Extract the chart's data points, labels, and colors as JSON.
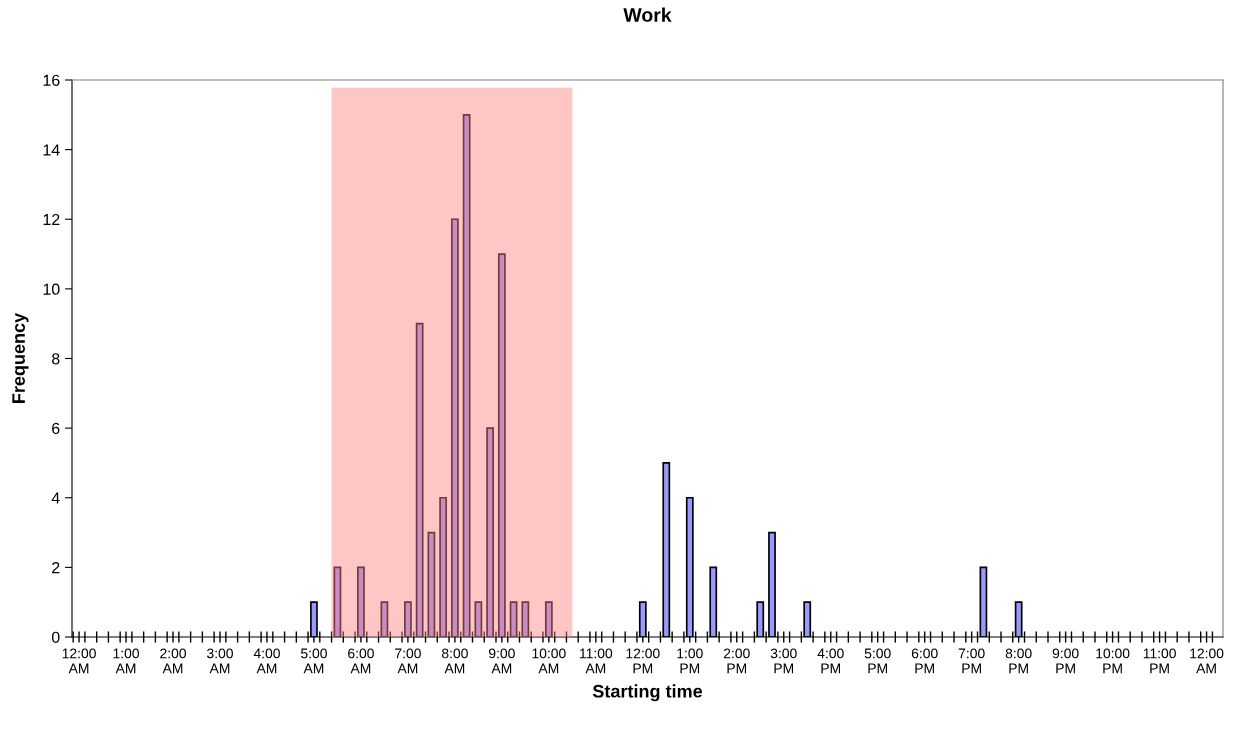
{
  "chart_data": {
    "type": "bar",
    "title": "Work",
    "xlabel": "Starting time",
    "ylabel": "Frequency",
    "x": [
      5,
      5.5,
      6,
      6.5,
      7,
      7.25,
      7.5,
      7.75,
      8,
      8.25,
      8.5,
      8.75,
      9,
      9.25,
      9.5,
      10,
      12,
      12.5,
      13,
      13.5,
      14.5,
      14.75,
      15.5,
      19.25,
      20
    ],
    "values": [
      1,
      2,
      2,
      1,
      1,
      9,
      3,
      4,
      12,
      15,
      1,
      6,
      11,
      1,
      1,
      1,
      1,
      5,
      4,
      2,
      1,
      3,
      1,
      2,
      1
    ],
    "color": "#9999ff",
    "ylim": [
      0,
      16
    ],
    "yticks": [
      0,
      2,
      4,
      6,
      8,
      10,
      12,
      14,
      16
    ],
    "xlim": [
      -0.15,
      24.35
    ],
    "xticks": [
      {
        "value": 0,
        "label": "12:00\nAM"
      },
      {
        "value": 1,
        "label": "1:00\nAM"
      },
      {
        "value": 2,
        "label": "2:00\nAM"
      },
      {
        "value": 3,
        "label": "3:00\nAM"
      },
      {
        "value": 4,
        "label": "4:00\nAM"
      },
      {
        "value": 5,
        "label": "5:00\nAM"
      },
      {
        "value": 6,
        "label": "6:00\nAM"
      },
      {
        "value": 7,
        "label": "7:00\nAM"
      },
      {
        "value": 8,
        "label": "8:00\nAM"
      },
      {
        "value": 9,
        "label": "9:00\nAM"
      },
      {
        "value": 10,
        "label": "10:00\nAM"
      },
      {
        "value": 11,
        "label": "11:00\nAM"
      },
      {
        "value": 12,
        "label": "12:00\nPM"
      },
      {
        "value": 13,
        "label": "1:00\nPM"
      },
      {
        "value": 14,
        "label": "2:00\nPM"
      },
      {
        "value": 15,
        "label": "3:00\nPM"
      },
      {
        "value": 16,
        "label": "4:00\nPM"
      },
      {
        "value": 17,
        "label": "5:00\nPM"
      },
      {
        "value": 18,
        "label": "6:00\nPM"
      },
      {
        "value": 19,
        "label": "7:00\nPM"
      },
      {
        "value": 20,
        "label": "8:00\nPM"
      },
      {
        "value": 21,
        "label": "9:00\nPM"
      },
      {
        "value": 22,
        "label": "10:00\nPM"
      },
      {
        "value": 23,
        "label": "11:00\nPM"
      },
      {
        "value": 24,
        "label": "12:00\nAM"
      },
      {
        "value": -0.125,
        "label": null
      },
      {
        "value": 0.125,
        "label": null
      },
      {
        "value": 0.375,
        "label": null
      },
      {
        "value": 0.625,
        "label": null
      },
      {
        "value": 0.875,
        "label": null
      },
      {
        "value": 1.125,
        "label": null
      },
      {
        "value": 1.375,
        "label": null
      },
      {
        "value": 1.625,
        "label": null
      },
      {
        "value": 1.875,
        "label": null
      },
      {
        "value": 2.125,
        "label": null
      },
      {
        "value": 2.375,
        "label": null
      },
      {
        "value": 2.625,
        "label": null
      },
      {
        "value": 2.875,
        "label": null
      },
      {
        "value": 3.125,
        "label": null
      },
      {
        "value": 3.375,
        "label": null
      },
      {
        "value": 3.625,
        "label": null
      },
      {
        "value": 3.875,
        "label": null
      },
      {
        "value": 4.125,
        "label": null
      },
      {
        "value": 4.375,
        "label": null
      },
      {
        "value": 4.625,
        "label": null
      },
      {
        "value": 4.875,
        "label": null
      },
      {
        "value": 5.125,
        "label": null
      },
      {
        "value": 5.375,
        "label": null
      },
      {
        "value": 5.625,
        "label": null
      },
      {
        "value": 5.875,
        "label": null
      },
      {
        "value": 6.125,
        "label": null
      },
      {
        "value": 6.375,
        "label": null
      },
      {
        "value": 6.625,
        "label": null
      },
      {
        "value": 6.875,
        "label": null
      },
      {
        "value": 7.125,
        "label": null
      },
      {
        "value": 7.375,
        "label": null
      },
      {
        "value": 7.625,
        "label": null
      },
      {
        "value": 7.875,
        "label": null
      },
      {
        "value": 8.125,
        "label": null
      },
      {
        "value": 8.375,
        "label": null
      },
      {
        "value": 8.625,
        "label": null
      },
      {
        "value": 8.875,
        "label": null
      },
      {
        "value": 9.125,
        "label": null
      },
      {
        "value": 9.375,
        "label": null
      },
      {
        "value": 9.625,
        "label": null
      },
      {
        "value": 9.875,
        "label": null
      },
      {
        "value": 10.125,
        "label": null
      },
      {
        "value": 10.375,
        "label": null
      },
      {
        "value": 10.625,
        "label": null
      },
      {
        "value": 10.875,
        "label": null
      },
      {
        "value": 11.125,
        "label": null
      },
      {
        "value": 11.375,
        "label": null
      },
      {
        "value": 11.625,
        "label": null
      },
      {
        "value": 11.875,
        "label": null
      },
      {
        "value": 12.125,
        "label": null
      },
      {
        "value": 12.375,
        "label": null
      },
      {
        "value": 12.625,
        "label": null
      },
      {
        "value": 12.875,
        "label": null
      },
      {
        "value": 13.125,
        "label": null
      },
      {
        "value": 13.375,
        "label": null
      },
      {
        "value": 13.625,
        "label": null
      },
      {
        "value": 13.875,
        "label": null
      },
      {
        "value": 14.125,
        "label": null
      },
      {
        "value": 14.375,
        "label": null
      },
      {
        "value": 14.625,
        "label": null
      },
      {
        "value": 14.875,
        "label": null
      },
      {
        "value": 15.125,
        "label": null
      },
      {
        "value": 15.375,
        "label": null
      },
      {
        "value": 15.625,
        "label": null
      },
      {
        "value": 15.875,
        "label": null
      },
      {
        "value": 16.125,
        "label": null
      },
      {
        "value": 16.375,
        "label": null
      },
      {
        "value": 16.625,
        "label": null
      },
      {
        "value": 16.875,
        "label": null
      },
      {
        "value": 17.125,
        "label": null
      },
      {
        "value": 17.375,
        "label": null
      },
      {
        "value": 17.625,
        "label": null
      },
      {
        "value": 17.875,
        "label": null
      },
      {
        "value": 18.125,
        "label": null
      },
      {
        "value": 18.375,
        "label": null
      },
      {
        "value": 18.625,
        "label": null
      },
      {
        "value": 18.875,
        "label": null
      },
      {
        "value": 19.125,
        "label": null
      },
      {
        "value": 19.375,
        "label": null
      },
      {
        "value": 19.625,
        "label": null
      },
      {
        "value": 19.875,
        "label": null
      },
      {
        "value": 20.125,
        "label": null
      },
      {
        "value": 20.375,
        "label": null
      },
      {
        "value": 20.625,
        "label": null
      },
      {
        "value": 20.875,
        "label": null
      },
      {
        "value": 21.125,
        "label": null
      },
      {
        "value": 21.375,
        "label": null
      },
      {
        "value": 21.625,
        "label": null
      },
      {
        "value": 21.875,
        "label": null
      },
      {
        "value": 22.125,
        "label": null
      },
      {
        "value": 22.375,
        "label": null
      },
      {
        "value": 22.625,
        "label": null
      },
      {
        "value": 22.875,
        "label": null
      },
      {
        "value": 23.125,
        "label": null
      },
      {
        "value": 23.375,
        "label": null
      },
      {
        "value": 23.625,
        "label": null
      },
      {
        "value": 23.875,
        "label": null
      },
      {
        "value": 24.125,
        "label": null
      }
    ],
    "bands": [
      {
        "axis": "x",
        "from": 5.375,
        "to": 10.5,
        "color": "#ff8080"
      }
    ],
    "grid": false,
    "legend": false
  }
}
